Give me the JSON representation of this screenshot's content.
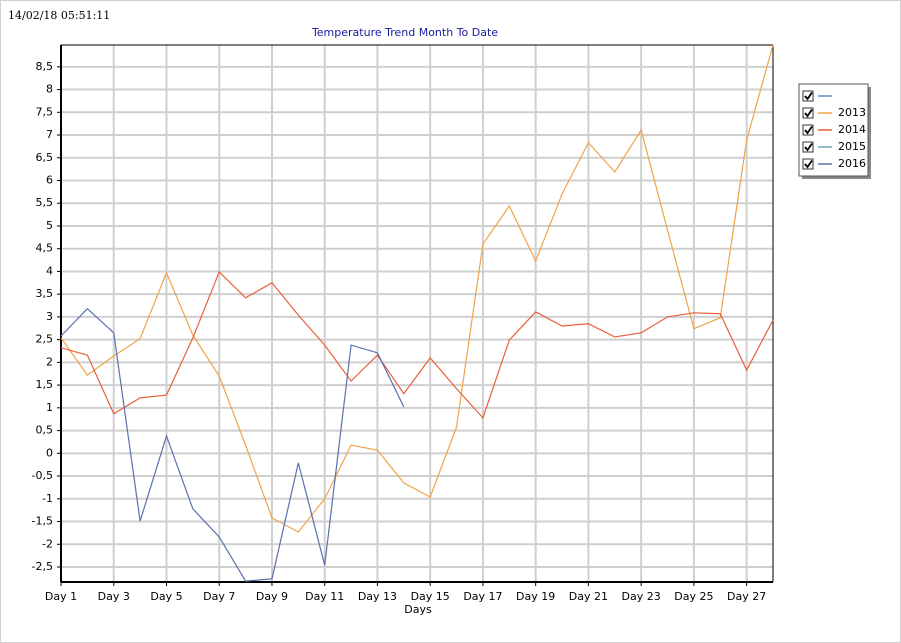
{
  "timestamp": "14/02/18 05:51:11",
  "chart_data": {
    "type": "line",
    "title": "Temperature Trend Month To Date",
    "x_label": "Days",
    "categories": [
      "Day 1",
      null,
      "Day 3",
      null,
      "Day 5",
      null,
      "Day 7",
      null,
      "Day 9",
      null,
      "Day 11",
      null,
      "Day 13",
      null,
      "Day 15",
      null,
      "Day 17",
      null,
      "Day 19",
      null,
      "Day 21",
      null,
      "Day 23",
      null,
      "Day 25",
      null,
      "Day 27",
      null
    ],
    "ylim": [
      -2.83,
      8.98
    ],
    "yticks": [
      {
        "value": -2.5,
        "label": "-2,5"
      },
      -2,
      {
        "value": -1.5,
        "label": "-1,5"
      },
      -1,
      {
        "value": -0.5,
        "label": "-0,5"
      },
      0,
      {
        "value": 0.5,
        "label": "0,5"
      },
      1,
      {
        "value": 1.5,
        "label": "1,5"
      },
      2,
      {
        "value": 2.5,
        "label": "2,5"
      },
      3,
      {
        "value": 3.5,
        "label": "3,5"
      },
      4,
      {
        "value": 4.5,
        "label": "4,5"
      },
      5,
      {
        "value": 5.5,
        "label": "5,5"
      },
      6,
      {
        "value": 6.5,
        "label": "6,5"
      },
      7,
      {
        "value": 7.5,
        "label": "7,5"
      },
      8,
      {
        "value": 8.5,
        "label": "8,5"
      }
    ],
    "grid": true,
    "legend": "right",
    "series": [
      {
        "color": "#6a82c0",
        "values": [
          null,
          null,
          null,
          null,
          null,
          null,
          null,
          null,
          null,
          null,
          null,
          null,
          null,
          null,
          null,
          null,
          null,
          null,
          null,
          null,
          null,
          null,
          null,
          null,
          null,
          null,
          null,
          null
        ]
      },
      {
        "name": "2013",
        "color": "#f0a34a",
        "values": [
          2.54,
          1.72,
          2.14,
          2.52,
          3.97,
          2.6,
          1.7,
          0.18,
          -1.42,
          -1.73,
          -1.0,
          0.18,
          0.07,
          -0.65,
          -0.96,
          0.58,
          4.6,
          5.44,
          4.23,
          5.7,
          6.83,
          6.19,
          7.11,
          4.91,
          2.74,
          2.98,
          6.89,
          8.98
        ]
      },
      {
        "name": "2014",
        "color": "#e8603c",
        "values": [
          2.32,
          2.16,
          0.87,
          1.22,
          1.28,
          2.54,
          3.99,
          3.42,
          3.75,
          3.04,
          2.38,
          1.59,
          2.16,
          1.31,
          2.1,
          1.42,
          0.78,
          2.49,
          3.11,
          2.8,
          2.85,
          2.56,
          2.65,
          3.0,
          3.09,
          3.07,
          1.83,
          2.93
        ]
      },
      {
        "name": "2015",
        "color": "#6aa8b8",
        "values": [
          null,
          null,
          null,
          null,
          null,
          null,
          null,
          null,
          null,
          null,
          null,
          null,
          null,
          null,
          null,
          null,
          null,
          null,
          null,
          null,
          null,
          null,
          null,
          null,
          null,
          null,
          null,
          null
        ]
      },
      {
        "name": "2016",
        "color": "#5a70b0",
        "values": [
          2.58,
          3.18,
          2.65,
          -1.49,
          0.38,
          -1.22,
          -1.84,
          -2.81,
          -2.76,
          -0.21,
          -2.46,
          2.38,
          2.21,
          1.02,
          null,
          null,
          null,
          null,
          null,
          null,
          null,
          null,
          null,
          null,
          null,
          null,
          null,
          null
        ]
      }
    ]
  }
}
